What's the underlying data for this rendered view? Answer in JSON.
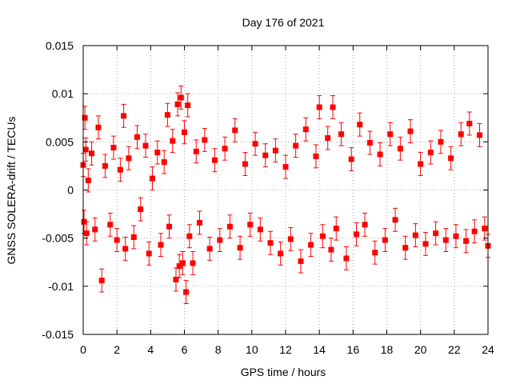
{
  "chart_data": {
    "type": "scatter",
    "title": "Day 176 of 2021",
    "xlabel": "GPS time / hours",
    "ylabel": "GNSS SOLERA-drift / TECUs",
    "xlim": [
      0,
      24
    ],
    "ylim": [
      -0.015,
      0.015
    ],
    "xticks": [
      0,
      2,
      4,
      6,
      8,
      10,
      12,
      14,
      16,
      18,
      20,
      22,
      24
    ],
    "yticks": [
      -0.015,
      -0.01,
      -0.005,
      0,
      0.005,
      0.01,
      0.015
    ],
    "ytick_labels": [
      "-0.015",
      "-0.01",
      "-0.005",
      "0",
      "0.005",
      "0.01",
      "0.015"
    ],
    "grid": true,
    "marker": "square",
    "error_bars": true,
    "typical_error": 0.0012,
    "color": "#ff0000",
    "series": [
      {
        "x": [
          0.0,
          0.05,
          0.1,
          0.15,
          0.2,
          0.3,
          0.5,
          0.7,
          0.9,
          1.1,
          1.3,
          1.6,
          1.8,
          2.0,
          2.2,
          2.4,
          2.5,
          2.7,
          3.0,
          3.2,
          3.4,
          3.7,
          3.9,
          4.1,
          4.4,
          4.6,
          4.8,
          5.0,
          5.1,
          5.3,
          5.5,
          5.6,
          5.7,
          5.8,
          5.9,
          6.0,
          6.1,
          6.2,
          6.3,
          6.5,
          6.7,
          6.9,
          7.2,
          7.5,
          7.8,
          8.1,
          8.4,
          8.7,
          9.0,
          9.3,
          9.6,
          9.9,
          10.2,
          10.5,
          10.8,
          11.1,
          11.4,
          11.7,
          12.0,
          12.3,
          12.6,
          12.9,
          13.2,
          13.5,
          13.8,
          14.0,
          14.2,
          14.5,
          14.7,
          14.8,
          15.0,
          15.3,
          15.6,
          15.9,
          16.2,
          16.4,
          16.7,
          17.0,
          17.3,
          17.6,
          17.9,
          18.2,
          18.5,
          18.8,
          19.1,
          19.4,
          19.7,
          20.0,
          20.3,
          20.6,
          20.9,
          21.2,
          21.5,
          21.8,
          22.1,
          22.4,
          22.7,
          22.9,
          23.2,
          23.5,
          23.8,
          24.0
        ],
        "y": [
          0.0026,
          -0.0033,
          0.0075,
          0.0042,
          -0.0045,
          0.001,
          0.0038,
          -0.0041,
          0.0065,
          -0.0094,
          0.0025,
          -0.0036,
          0.0044,
          -0.0052,
          0.0021,
          0.0077,
          -0.0061,
          0.0033,
          -0.0049,
          0.0055,
          -0.002,
          0.0046,
          -0.0066,
          0.0012,
          0.0039,
          -0.0057,
          0.0029,
          0.0078,
          -0.0038,
          0.0051,
          -0.0093,
          0.0089,
          -0.0079,
          0.0096,
          -0.0076,
          0.006,
          -0.0106,
          0.0088,
          -0.0048,
          -0.0076,
          0.004,
          -0.0034,
          0.0052,
          -0.0061,
          0.0031,
          -0.0052,
          0.0043,
          -0.0038,
          0.0062,
          -0.006,
          0.0027,
          -0.0036,
          0.0048,
          -0.0041,
          0.0036,
          -0.0055,
          0.0041,
          -0.0066,
          0.0024,
          -0.0051,
          0.0046,
          -0.0074,
          0.0063,
          -0.0057,
          0.0035,
          0.0086,
          -0.0048,
          0.0054,
          -0.0062,
          0.0086,
          -0.004,
          0.0058,
          -0.0071,
          0.0032,
          -0.0046,
          0.0068,
          -0.0036,
          0.0049,
          -0.0065,
          0.0037,
          -0.0052,
          0.0058,
          -0.0031,
          0.0043,
          -0.006,
          0.0061,
          -0.0047,
          0.0027,
          -0.0056,
          0.0039,
          -0.0045,
          0.005,
          -0.0052,
          0.0033,
          -0.0048,
          0.0058,
          -0.0053,
          0.0069,
          -0.0043,
          0.0057,
          -0.004,
          -0.0058
        ]
      }
    ]
  }
}
